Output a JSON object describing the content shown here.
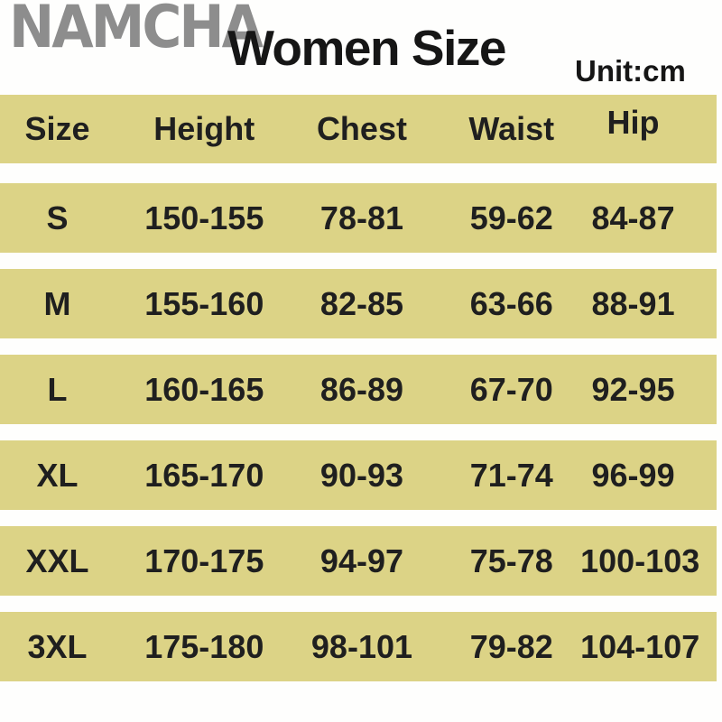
{
  "brand": {
    "logo_text": "NAMCHA",
    "logo_color": "#8d8d8d"
  },
  "header": {
    "title": "Women Size",
    "unit_label": "Unit:cm"
  },
  "colors": {
    "band": "#dcd386",
    "text": "#1f1f1f",
    "background": "#fefefd"
  },
  "chart_data": {
    "type": "table",
    "title": "Women Size",
    "unit": "cm",
    "columns": [
      "Size",
      "Height",
      "Chest",
      "Waist",
      "Hip"
    ],
    "rows": [
      [
        "S",
        "150-155",
        "78-81",
        "59-62",
        "84-87"
      ],
      [
        "M",
        "155-160",
        "82-85",
        "63-66",
        "88-91"
      ],
      [
        "L",
        "160-165",
        "86-89",
        "67-70",
        "92-95"
      ],
      [
        "XL",
        "165-170",
        "90-93",
        "71-74",
        "96-99"
      ],
      [
        "XXL",
        "170-175",
        "94-97",
        "75-78",
        "100-103"
      ],
      [
        "3XL",
        "175-180",
        "98-101",
        "79-82",
        "104-107"
      ]
    ]
  }
}
